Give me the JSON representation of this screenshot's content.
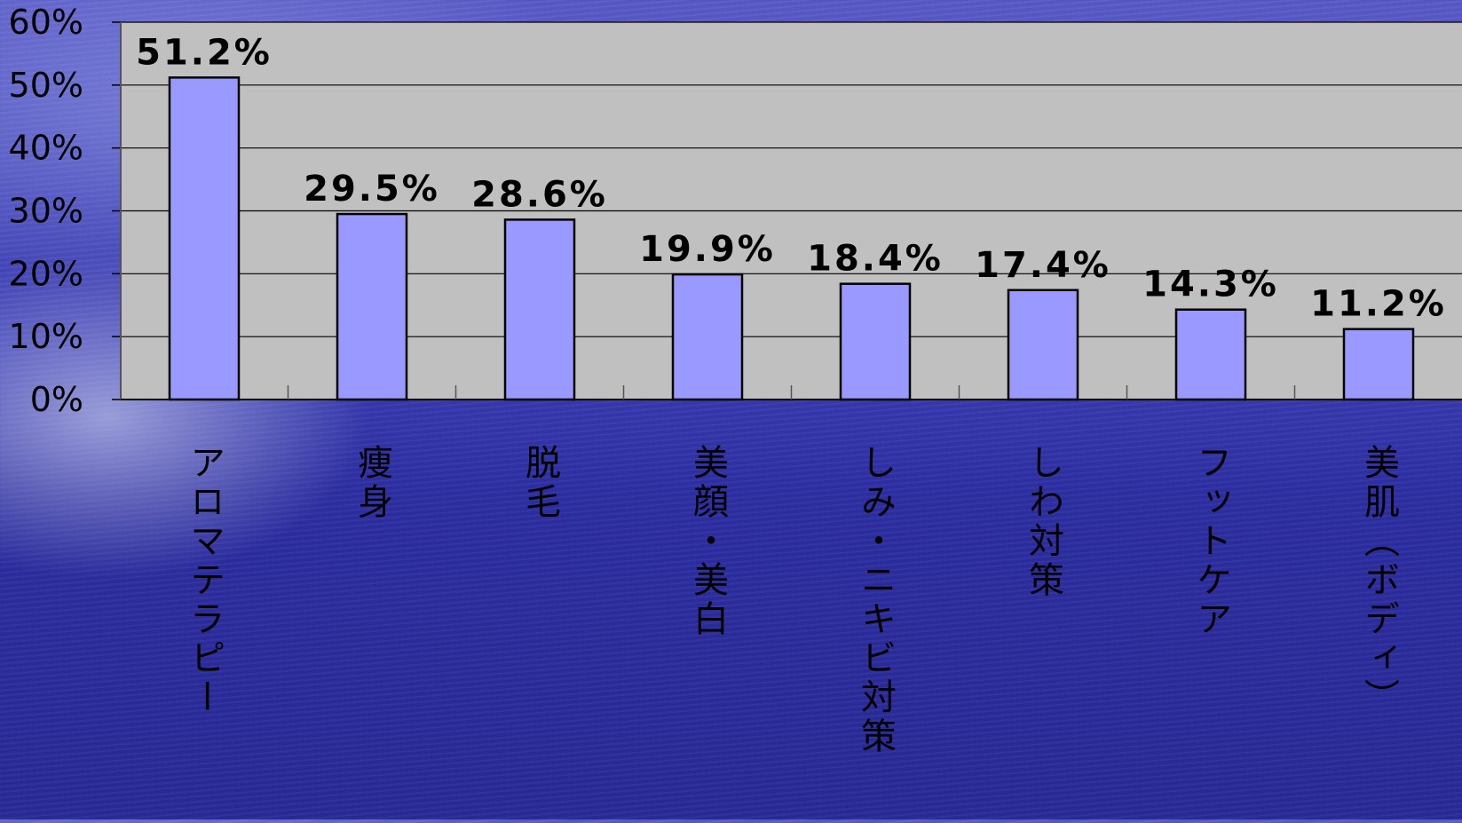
{
  "chart_data": {
    "type": "bar",
    "categories": [
      "アロマテラピー",
      "痩身",
      "脱毛",
      "美顔・美白",
      "しみ・ニキビ対策",
      "しわ対策",
      "フットケア",
      "美肌（ボディ）"
    ],
    "values": [
      51.2,
      29.5,
      28.6,
      19.9,
      18.4,
      17.4,
      14.3,
      11.2
    ],
    "data_labels": [
      "51.2%",
      "29.5%",
      "28.6%",
      "19.9%",
      "18.4%",
      "17.4%",
      "14.3%",
      "11.2%"
    ],
    "y_ticks": [
      "0%",
      "10%",
      "20%",
      "30%",
      "40%",
      "50%",
      "60%"
    ],
    "ylim": [
      0,
      60
    ],
    "grid": true,
    "colors": {
      "bar_fill": "#9999ff",
      "bar_stroke": "#000000",
      "plot_bg": "#c0c0c0",
      "gridline": "#000000",
      "text": "#000000"
    }
  }
}
